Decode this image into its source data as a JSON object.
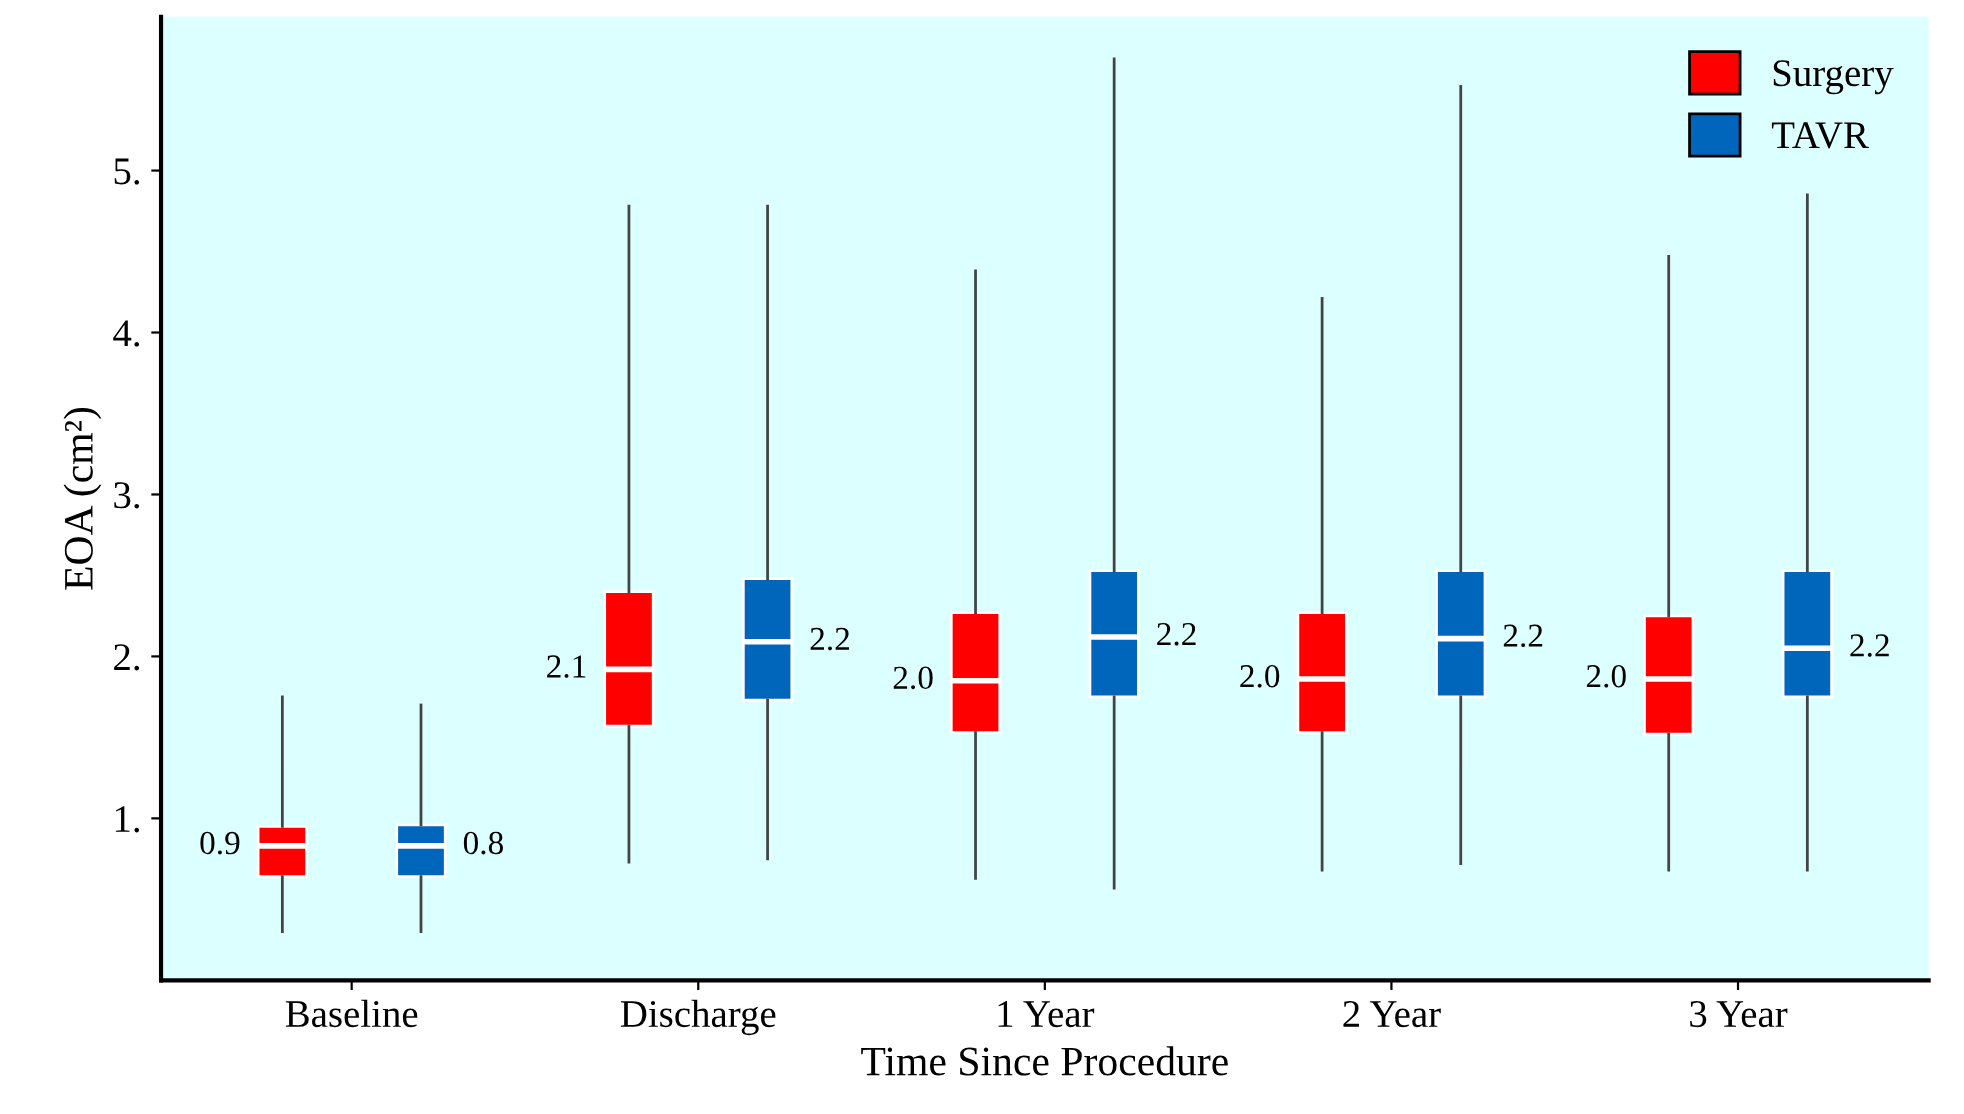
{
  "chart_data": {
    "type": "box",
    "xlabel": "Time Since Procedure",
    "ylabel": "EOA (cm²)",
    "categories": [
      "Baseline",
      "Discharge",
      "1 Year",
      "2 Year",
      "3 Year"
    ],
    "ylim": [
      0,
      5.95
    ],
    "yticks": [
      {
        "value": 1,
        "label": "1."
      },
      {
        "value": 2,
        "label": "2."
      },
      {
        "value": 3,
        "label": "3."
      },
      {
        "value": 4,
        "label": "4."
      },
      {
        "value": 5,
        "label": "5."
      }
    ],
    "legend": "top right",
    "grid": false,
    "series": [
      {
        "name": "Surgery",
        "color": "#ff0000",
        "value_labels": [
          "0.9",
          "2.1",
          "2.0",
          "2.0",
          "2.0"
        ],
        "boxes": [
          {
            "low": 0.3,
            "q1": 0.64,
            "median": 0.83,
            "q3": 0.95,
            "high": 1.75
          },
          {
            "low": 0.73,
            "q1": 1.57,
            "median": 1.92,
            "q3": 2.4,
            "high": 4.78
          },
          {
            "low": 0.63,
            "q1": 1.53,
            "median": 1.85,
            "q3": 2.27,
            "high": 4.38
          },
          {
            "low": 0.68,
            "q1": 1.53,
            "median": 1.86,
            "q3": 2.27,
            "high": 4.21
          },
          {
            "low": 0.68,
            "q1": 1.52,
            "median": 1.86,
            "q3": 2.25,
            "high": 4.47
          }
        ]
      },
      {
        "name": "TAVR",
        "color": "#0066bb",
        "value_labels": [
          "0.8",
          "2.2",
          "2.2",
          "2.2",
          "2.2"
        ],
        "boxes": [
          {
            "low": 0.3,
            "q1": 0.64,
            "median": 0.83,
            "q3": 0.96,
            "high": 1.7
          },
          {
            "low": 0.75,
            "q1": 1.73,
            "median": 2.09,
            "q3": 2.48,
            "high": 4.78
          },
          {
            "low": 0.57,
            "q1": 1.75,
            "median": 2.12,
            "q3": 2.53,
            "high": 5.69
          },
          {
            "low": 0.72,
            "q1": 1.75,
            "median": 2.11,
            "q3": 2.53,
            "high": 5.52
          },
          {
            "low": 0.68,
            "q1": 1.75,
            "median": 2.05,
            "q3": 2.53,
            "high": 4.85
          }
        ]
      }
    ]
  }
}
